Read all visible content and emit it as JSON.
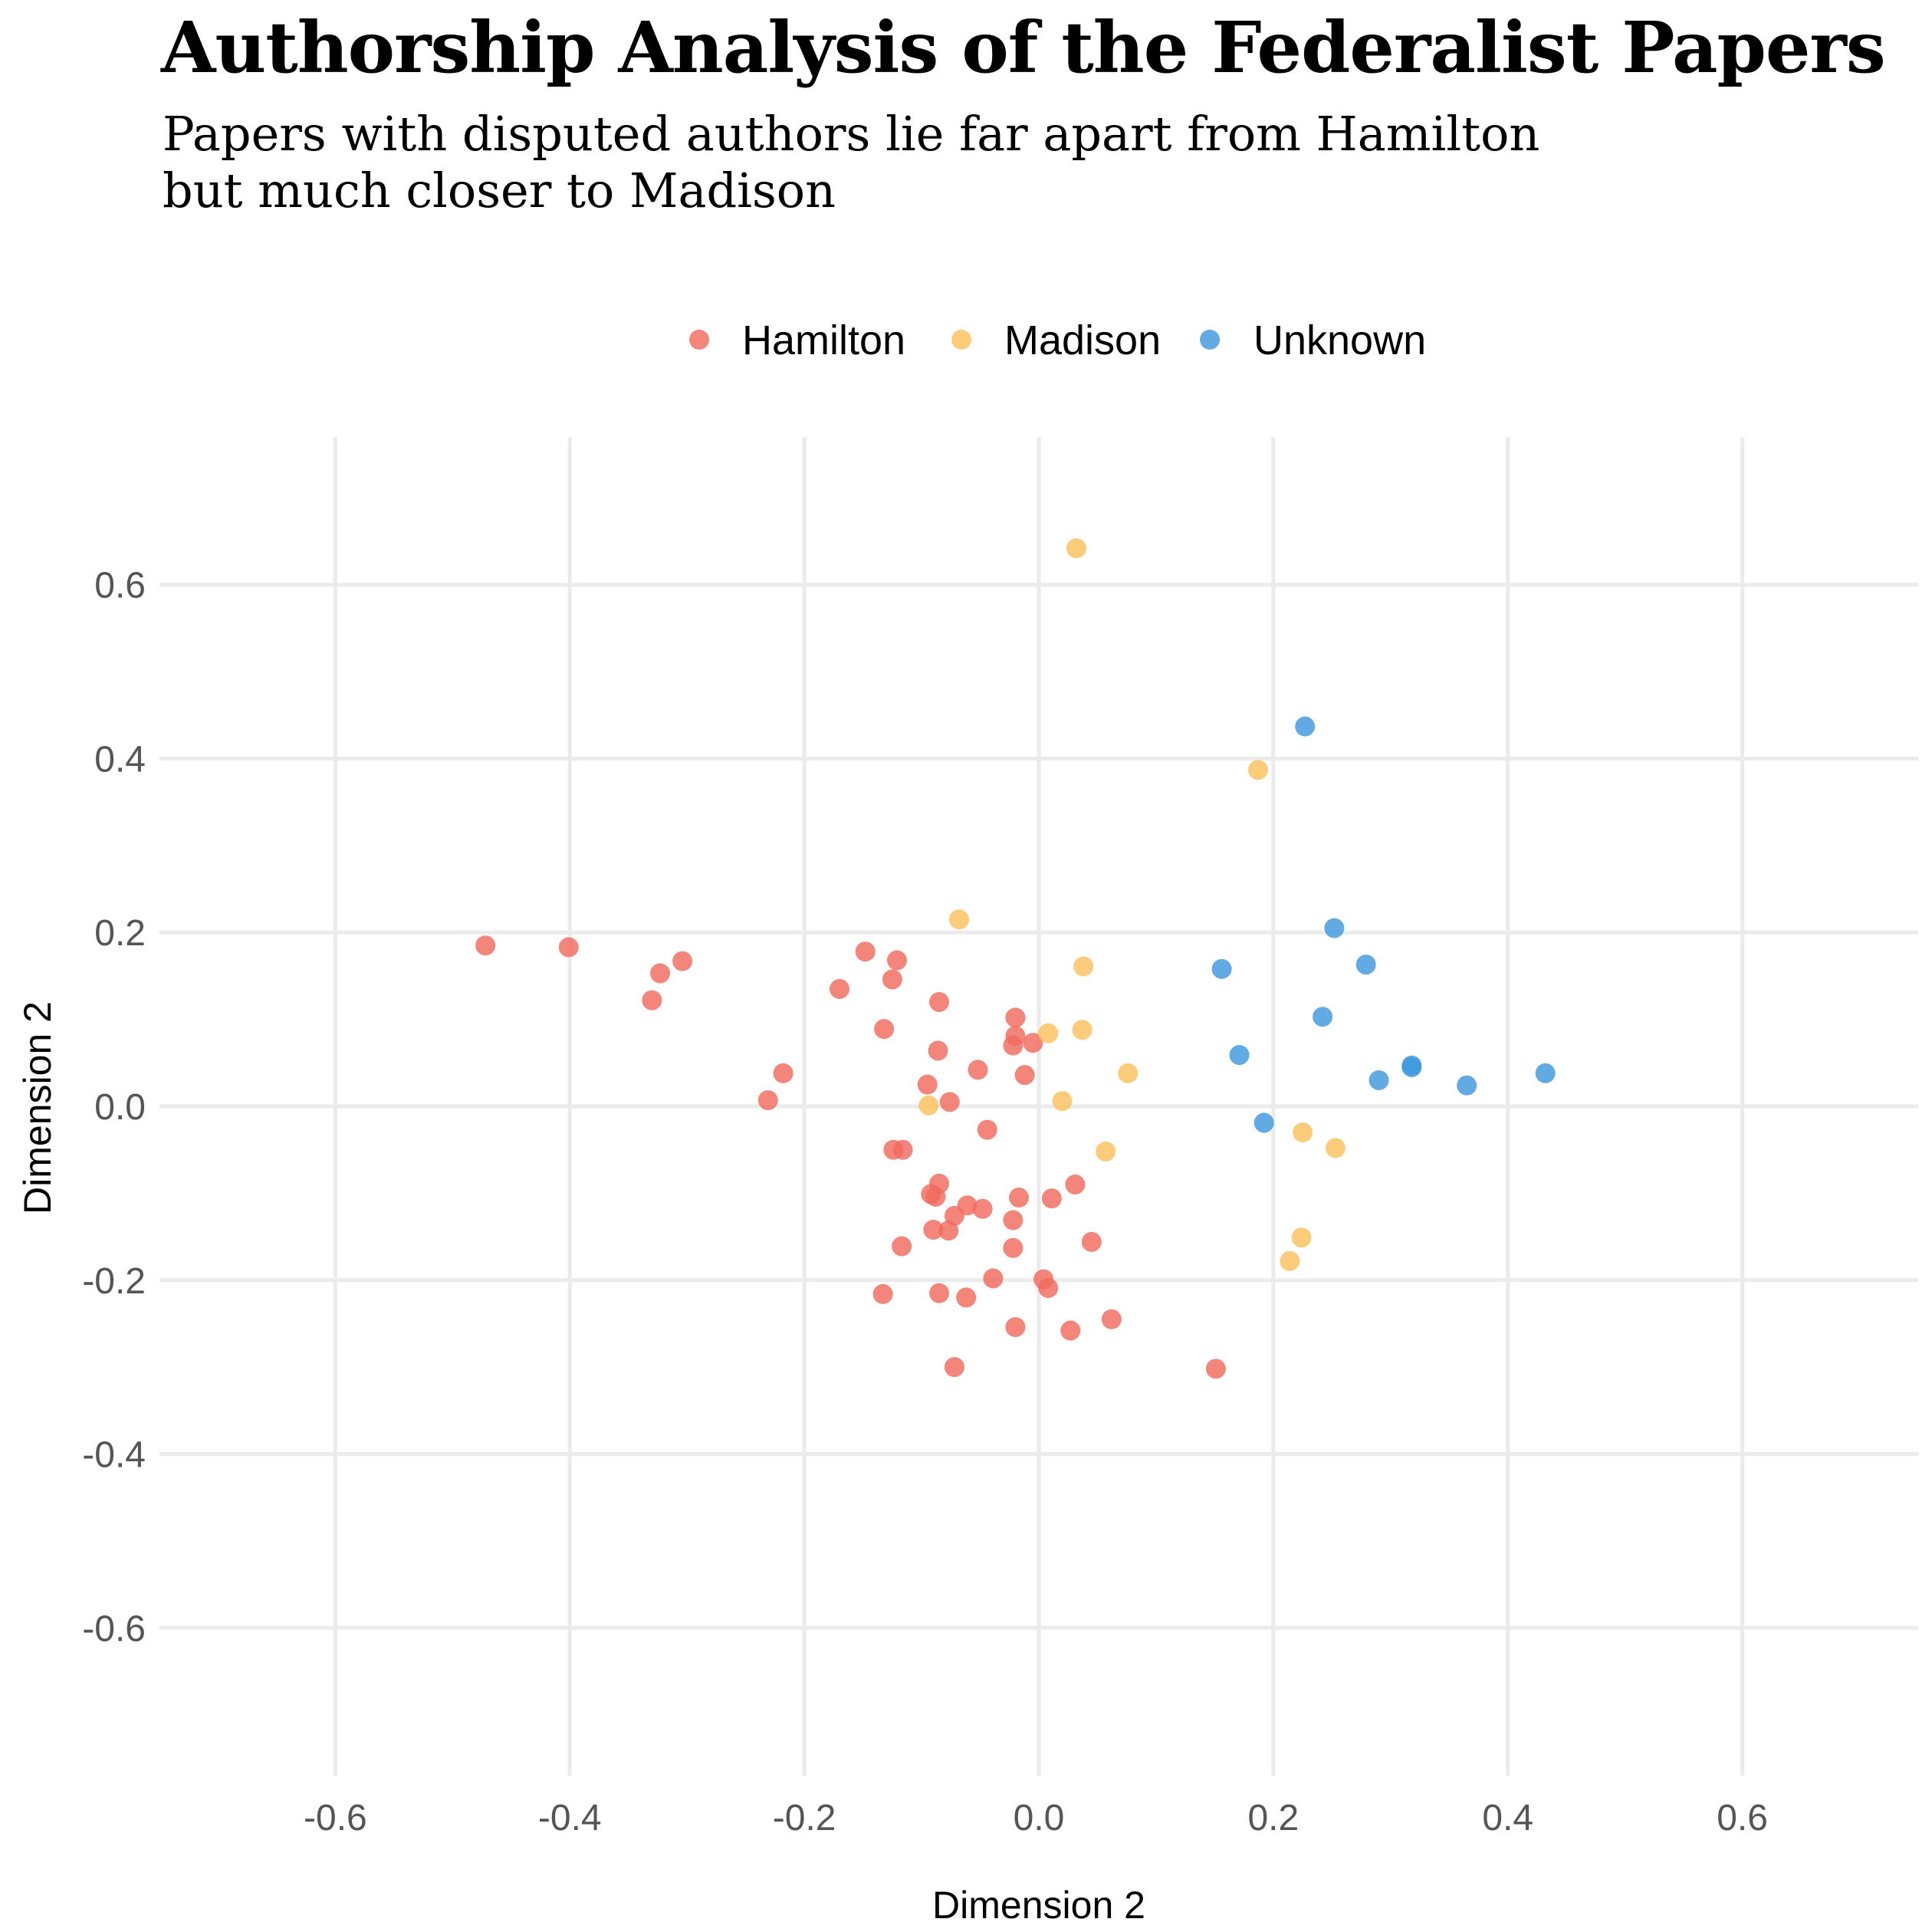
{
  "title": "Authorship Analysis of the Federalist Papers",
  "subtitle_line1": "Papers with disputed authors lie far apart from Hamilton",
  "subtitle_line2": "but much closer to Madison",
  "chart_data": {
    "type": "scatter",
    "title": "Authorship Analysis of the Federalist Papers",
    "subtitle": "Papers with disputed authors lie far apart from Hamilton but much closer to Madison",
    "xlabel": "Dimension 2",
    "ylabel": "Dimension 2",
    "xlim": [
      -0.75,
      0.75
    ],
    "ylim": [
      -0.77,
      0.77
    ],
    "xticks": [
      -0.6,
      -0.4,
      -0.2,
      0.0,
      0.2,
      0.4,
      0.6
    ],
    "xtick_labels": [
      "-0.6",
      "-0.4",
      "-0.2",
      "0.0",
      "0.2",
      "0.4",
      "0.6"
    ],
    "yticks": [
      0.6,
      0.4,
      0.2,
      0.0,
      -0.2,
      -0.4,
      -0.6
    ],
    "ytick_labels": [
      "0.6",
      "0.4",
      "0.2",
      "0.0",
      "-0.2",
      "-0.4",
      "-0.6"
    ],
    "grid": true,
    "legend_position": "top",
    "series": [
      {
        "name": "Hamilton",
        "color": "#F06A5E",
        "points": [
          [
            -0.472,
            0.185
          ],
          [
            -0.401,
            0.183
          ],
          [
            -0.304,
            0.167
          ],
          [
            -0.323,
            0.153
          ],
          [
            -0.33,
            0.122
          ],
          [
            -0.148,
            0.178
          ],
          [
            -0.121,
            0.168
          ],
          [
            -0.125,
            0.146
          ],
          [
            -0.17,
            0.135
          ],
          [
            -0.085,
            0.12
          ],
          [
            -0.132,
            0.089
          ],
          [
            -0.02,
            0.102
          ],
          [
            -0.02,
            0.081
          ],
          [
            -0.005,
            0.073
          ],
          [
            -0.022,
            0.07
          ],
          [
            -0.086,
            0.064
          ],
          [
            -0.218,
            0.038
          ],
          [
            -0.052,
            0.042
          ],
          [
            -0.012,
            0.036
          ],
          [
            -0.095,
            0.025
          ],
          [
            -0.231,
            0.007
          ],
          [
            -0.076,
            0.005
          ],
          [
            -0.044,
            -0.027
          ],
          [
            -0.124,
            -0.05
          ],
          [
            -0.116,
            -0.05
          ],
          [
            -0.085,
            -0.089
          ],
          [
            0.031,
            -0.09
          ],
          [
            -0.092,
            -0.101
          ],
          [
            -0.088,
            -0.104
          ],
          [
            -0.017,
            -0.105
          ],
          [
            0.011,
            -0.106
          ],
          [
            -0.061,
            -0.114
          ],
          [
            -0.048,
            -0.118
          ],
          [
            -0.072,
            -0.126
          ],
          [
            -0.022,
            -0.131
          ],
          [
            -0.09,
            -0.142
          ],
          [
            -0.077,
            -0.143
          ],
          [
            0.045,
            -0.156
          ],
          [
            -0.117,
            -0.161
          ],
          [
            -0.022,
            -0.163
          ],
          [
            -0.039,
            -0.198
          ],
          [
            0.004,
            -0.199
          ],
          [
            0.008,
            -0.209
          ],
          [
            -0.133,
            -0.216
          ],
          [
            -0.085,
            -0.215
          ],
          [
            -0.062,
            -0.22
          ],
          [
            0.062,
            -0.245
          ],
          [
            -0.02,
            -0.254
          ],
          [
            0.027,
            -0.258
          ],
          [
            -0.072,
            -0.3
          ],
          [
            0.151,
            -0.302
          ]
        ]
      },
      {
        "name": "Madison",
        "color": "#FBC15E",
        "points": [
          [
            0.032,
            0.642
          ],
          [
            0.187,
            0.387
          ],
          [
            -0.068,
            0.215
          ],
          [
            0.038,
            0.161
          ],
          [
            0.037,
            0.088
          ],
          [
            0.008,
            0.084
          ],
          [
            0.076,
            0.038
          ],
          [
            0.02,
            0.006
          ],
          [
            -0.094,
            0.001
          ],
          [
            0.225,
            -0.03
          ],
          [
            0.253,
            -0.048
          ],
          [
            0.057,
            -0.052
          ],
          [
            0.224,
            -0.151
          ],
          [
            0.214,
            -0.178
          ]
        ]
      },
      {
        "name": "Unknown",
        "color": "#3F97DE",
        "points": [
          [
            0.227,
            0.437
          ],
          [
            0.252,
            0.205
          ],
          [
            0.279,
            0.163
          ],
          [
            0.156,
            0.158
          ],
          [
            0.242,
            0.103
          ],
          [
            0.171,
            0.059
          ],
          [
            0.318,
            0.047
          ],
          [
            0.318,
            0.045
          ],
          [
            0.29,
            0.03
          ],
          [
            0.365,
            0.024
          ],
          [
            0.432,
            0.038
          ],
          [
            0.192,
            -0.019
          ]
        ]
      }
    ]
  }
}
